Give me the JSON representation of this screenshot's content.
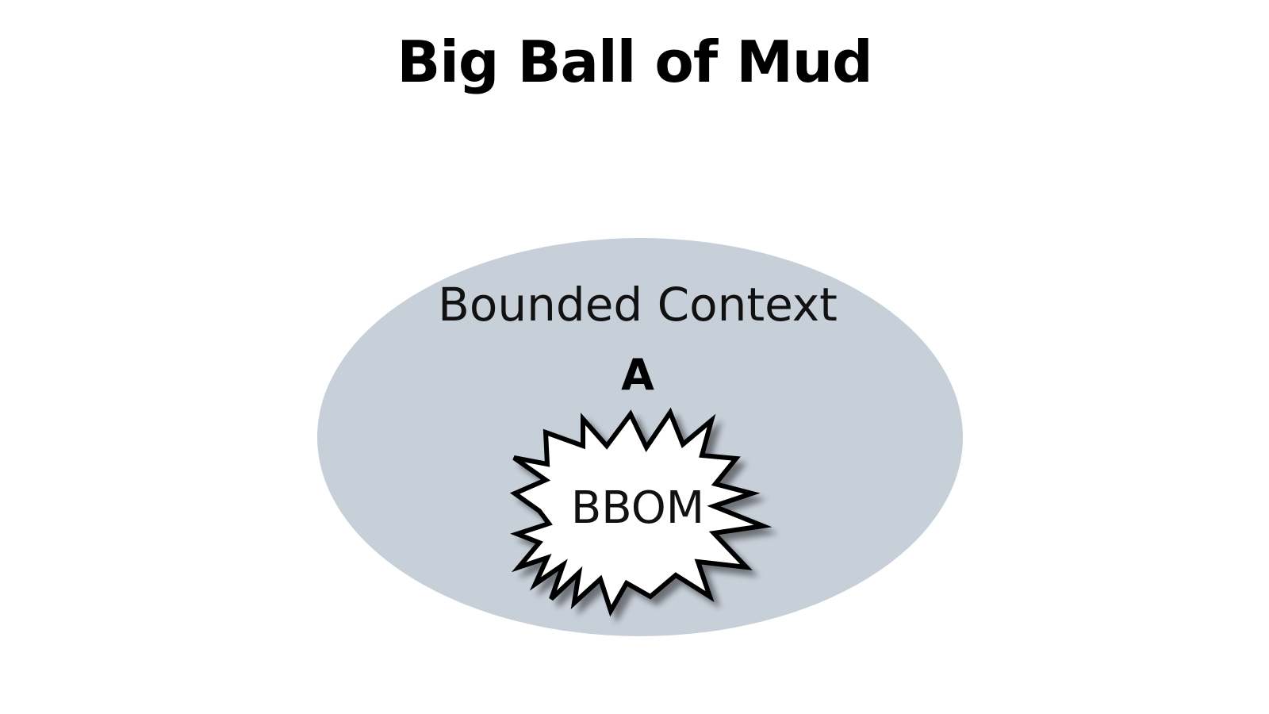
{
  "title": "Big Ball of Mud",
  "bounded_context": {
    "label": "Bounded Context",
    "name": "A",
    "fill_color": "#c7cfd9"
  },
  "bbom": {
    "label": "BBOM",
    "shape": "explosion-starburst",
    "fill_color": "#ffffff",
    "stroke_color": "#000000"
  }
}
